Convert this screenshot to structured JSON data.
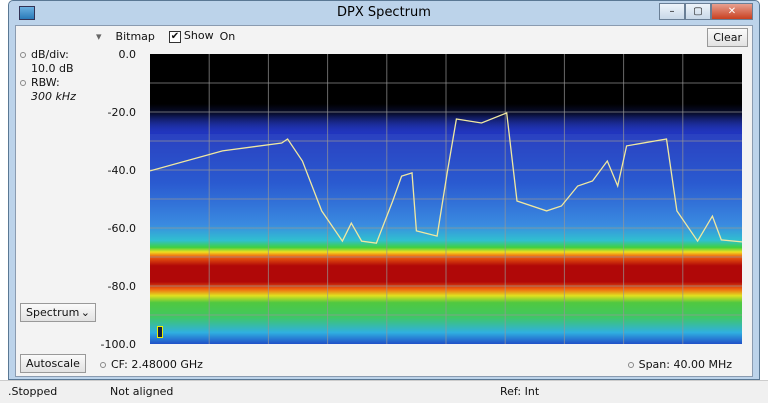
{
  "window": {
    "title": "DPX Spectrum",
    "min": "–",
    "max": "▢",
    "close": "✕"
  },
  "toolbar": {
    "trace_menu": "▾",
    "bitmap": "Bitmap",
    "show_checked": true,
    "show_label": "Show",
    "on_label": "On",
    "clear": "Clear"
  },
  "side": {
    "dbdiv_label": "dB/div:",
    "dbdiv_value": "10.0 dB",
    "rbw_label": "RBW:",
    "rbw_value": "300 kHz",
    "view_select": "Spectrum",
    "autoscale": "Autoscale"
  },
  "footer": {
    "cf": "CF: 2.48000 GHz",
    "span": "Span: 40.00 MHz"
  },
  "status": {
    "run": ".Stopped",
    "align": "Not aligned",
    "ref": "Ref: Int"
  },
  "chart_data": {
    "type": "line",
    "yticks": [
      "0.0",
      "-20.0",
      "-40.0",
      "-60.0",
      "-80.0",
      "-100.0"
    ],
    "ylim": [
      -100,
      0
    ],
    "xlim_ghz": [
      2.46,
      2.5
    ],
    "grid": true,
    "trace_color": "#f0e8a0",
    "trace": {
      "x": [
        2.46,
        2.4649,
        2.4689,
        2.4693,
        2.4703,
        2.4716,
        2.473,
        2.4736,
        2.4743,
        2.4753,
        2.4764,
        2.477,
        2.4777,
        2.478,
        2.4794,
        2.4801,
        2.4807,
        2.4824,
        2.4841,
        2.4848,
        2.4868,
        2.4878,
        2.4889,
        2.4899,
        2.4909,
        2.4916,
        2.4922,
        2.4949,
        2.4956,
        2.497,
        2.498,
        2.4986,
        2.5
      ],
      "y": [
        -40.3,
        -33.4,
        -30.7,
        -29.3,
        -36.9,
        -54.1,
        -64.5,
        -58.3,
        -64.5,
        -65.2,
        -50.7,
        -42.1,
        -41.0,
        -61.0,
        -62.8,
        -40.3,
        -22.4,
        -23.8,
        -20.3,
        -50.7,
        -54.1,
        -52.4,
        -45.5,
        -43.8,
        -36.9,
        -45.5,
        -31.7,
        -29.3,
        -54.1,
        -64.5,
        -55.9,
        -64.1,
        -64.8
      ]
    }
  }
}
